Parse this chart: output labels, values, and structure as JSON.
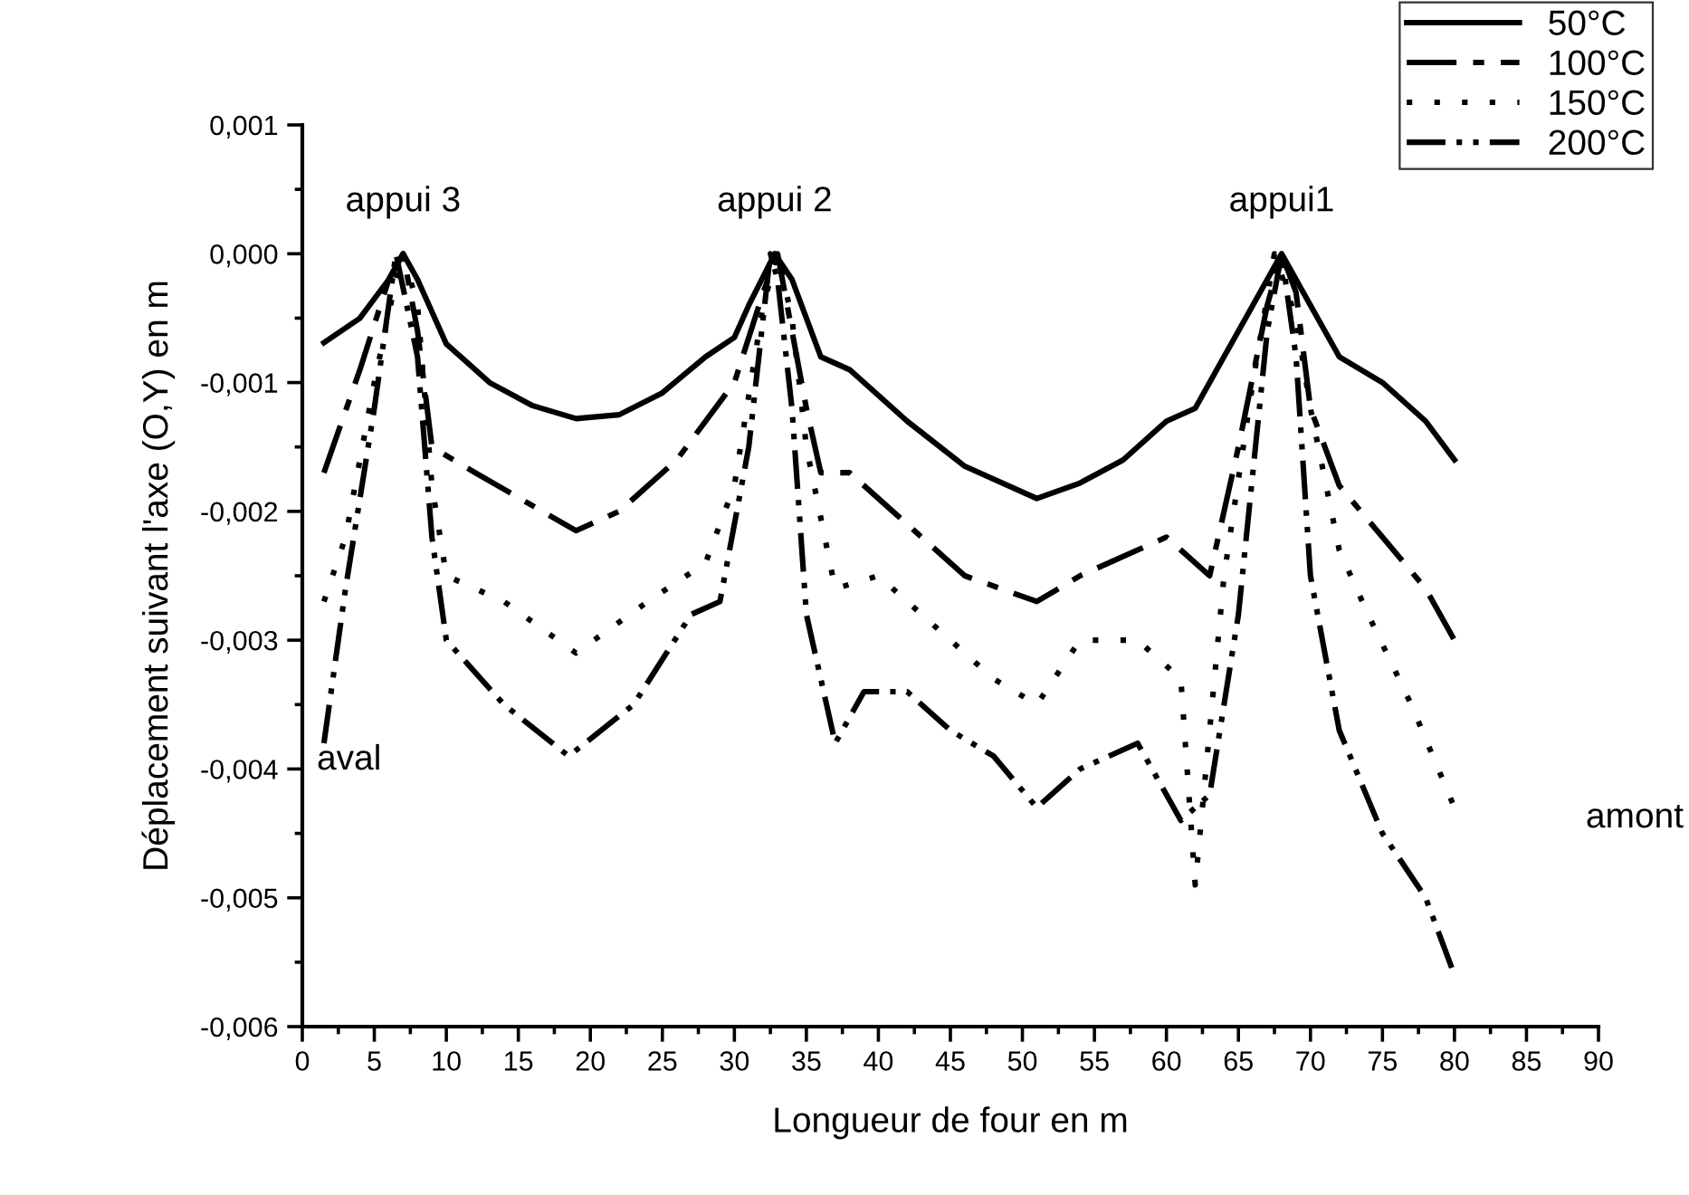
{
  "chart_data": {
    "type": "line",
    "xlabel": "Longueur de four en m",
    "ylabel": "Déplacement suivant l'axe (O,Y) en m",
    "xlim": [
      0,
      90
    ],
    "xticks": [
      0,
      5,
      10,
      15,
      20,
      25,
      30,
      35,
      40,
      45,
      50,
      55,
      60,
      65,
      70,
      75,
      80,
      85,
      90
    ],
    "ylim": [
      -0.006,
      0.001
    ],
    "yticks": [
      {
        "value": -0.006,
        "label": "-0,006"
      },
      {
        "value": -0.005,
        "label": "-0,005"
      },
      {
        "value": -0.004,
        "label": "-0,004"
      },
      {
        "value": -0.003,
        "label": "-0,003"
      },
      {
        "value": -0.002,
        "label": "-0,002"
      },
      {
        "value": -0.001,
        "label": "-0,001"
      },
      {
        "value": 0,
        "label": "0,000"
      },
      {
        "value": 0.001,
        "label": "0,001"
      }
    ],
    "grid": false,
    "legend": "top right",
    "marker": "none",
    "annotations": [
      {
        "text": "appui 3",
        "x": 7,
        "y": 0
      },
      {
        "text": "appui 2",
        "x": 32.8,
        "y": 0
      },
      {
        "text": "appui1",
        "x": 68,
        "y": 0
      },
      "aval",
      "amont"
    ],
    "series": [
      {
        "name": "50°C",
        "color": "#000000",
        "line_style": "solid",
        "x": [
          1.5,
          4,
          6,
          7,
          8,
          10,
          13,
          16,
          19,
          22,
          25,
          28,
          30,
          31,
          32.8,
          34,
          36,
          38,
          42,
          46,
          51,
          54,
          57,
          60,
          62,
          64,
          66,
          68,
          70,
          72,
          75,
          78,
          80
        ],
        "values": [
          -0.00069,
          -0.0005,
          -0.0002,
          0.0,
          -0.0002,
          -0.0007,
          -0.001,
          -0.00118,
          -0.00128,
          -0.00125,
          -0.00108,
          -0.0008,
          -0.00065,
          -0.0004,
          0.0,
          -0.0002,
          -0.0008,
          -0.0009,
          -0.0013,
          -0.00165,
          -0.0019,
          -0.00178,
          -0.0016,
          -0.0013,
          -0.0012,
          -0.0008,
          -0.0004,
          0.0,
          -0.0004,
          -0.0008,
          -0.001,
          -0.0013,
          -0.0016
        ]
      },
      {
        "name": "100°C",
        "color": "#000000",
        "line_style": "dashed",
        "x": [
          1.5,
          4,
          6,
          7,
          8,
          9,
          12,
          19,
          22,
          26,
          30,
          32,
          33,
          34,
          35,
          36,
          38,
          41,
          46,
          51,
          54,
          58,
          60,
          63,
          65,
          67,
          68,
          69,
          70,
          72,
          75,
          78,
          80
        ],
        "values": [
          -0.0017,
          -0.0009,
          -0.0002,
          0.0,
          -0.0006,
          -0.0015,
          -0.0017,
          -0.00215,
          -0.002,
          -0.0016,
          -0.001,
          -0.0003,
          0.0,
          -0.0006,
          -0.0012,
          -0.0017,
          -0.0017,
          -0.002,
          -0.0025,
          -0.0027,
          -0.0025,
          -0.0023,
          -0.0022,
          -0.0025,
          -0.0015,
          -0.0004,
          0.0,
          -0.0003,
          -0.0012,
          -0.0018,
          -0.0022,
          -0.0026,
          -0.003
        ]
      },
      {
        "name": "150°C",
        "color": "#000000",
        "line_style": "dotted",
        "x": [
          1.5,
          3,
          5,
          6.5,
          7,
          8,
          9,
          10,
          14,
          19,
          24,
          28,
          30,
          32,
          33,
          34,
          35,
          37,
          40,
          45,
          48,
          51,
          54,
          58,
          61,
          62,
          64,
          66,
          67.5,
          69,
          70,
          72,
          74,
          77,
          80
        ],
        "values": [
          -0.0027,
          -0.0022,
          -0.001,
          -0.0002,
          0.0,
          -0.0004,
          -0.0018,
          -0.0025,
          -0.0027,
          -0.0031,
          -0.0027,
          -0.0024,
          -0.0018,
          -0.0004,
          0.0,
          -0.0005,
          -0.0015,
          -0.0026,
          -0.0025,
          -0.003,
          -0.0033,
          -0.0035,
          -0.003,
          -0.003,
          -0.0033,
          -0.0049,
          -0.0025,
          -0.001,
          0.0,
          -0.0005,
          -0.0012,
          -0.0023,
          -0.0028,
          -0.0035,
          -0.0043
        ]
      },
      {
        "name": "200°C",
        "color": "#000000",
        "line_style": "dashdot",
        "x": [
          1.5,
          3,
          5,
          6.5,
          8,
          9,
          10,
          14,
          18.5,
          23,
          27,
          29,
          31,
          32.5,
          33,
          34,
          35,
          37,
          39,
          42,
          45,
          48,
          51,
          54,
          56,
          58,
          61,
          63,
          65,
          67,
          68,
          69,
          70,
          72,
          75,
          78,
          80
        ],
        "values": [
          -0.0038,
          -0.0026,
          -0.0012,
          0.0,
          -0.0008,
          -0.0022,
          -0.003,
          -0.0035,
          -0.0039,
          -0.0035,
          -0.0028,
          -0.0027,
          -0.0015,
          0.0,
          -0.0002,
          -0.0012,
          -0.0028,
          -0.0038,
          -0.0034,
          -0.0034,
          -0.0037,
          -0.0039,
          -0.0043,
          -0.004,
          -0.0039,
          -0.0038,
          -0.0044,
          -0.0042,
          -0.0028,
          -0.0006,
          0.0,
          -0.0008,
          -0.0025,
          -0.0037,
          -0.0045,
          -0.005,
          -0.0056
        ]
      }
    ]
  }
}
